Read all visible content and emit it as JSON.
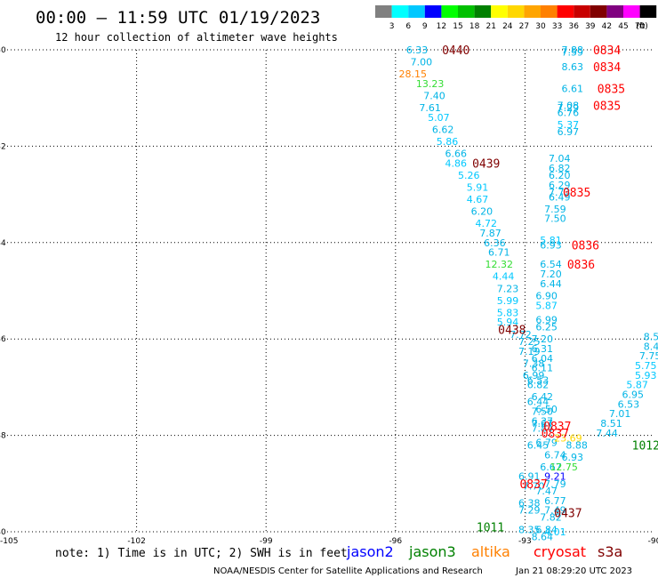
{
  "chart_data": {
    "type": "scatter",
    "title": "00:00 — 11:59 UTC 01/19/2023",
    "subtitle": "12 hour collection of altimeter wave heights",
    "xlim": [
      -105,
      -90
    ],
    "ylim": [
      -40,
      -30
    ],
    "x_ticks": [
      -105,
      -102,
      -99,
      -96,
      -93,
      -90
    ],
    "x_tick_labels": [
      "-105",
      "-102",
      "-99",
      "-96",
      "-93",
      "-90"
    ],
    "y_ticks": [
      -30,
      -32,
      -34,
      -36,
      -38,
      -40
    ],
    "y_tick_labels": [
      "-30",
      "-32",
      "-34",
      "-36",
      "-38",
      "-40"
    ],
    "grid": true,
    "color_scale": {
      "unit": "(ft)",
      "labels": [
        "3",
        "6",
        "9",
        "12",
        "15",
        "18",
        "21",
        "24",
        "27",
        "30",
        "33",
        "36",
        "39",
        "42",
        "45",
        "70"
      ],
      "colors": [
        "#808080",
        "#00ffff",
        "#00c8ff",
        "#0000ff",
        "#00ff00",
        "#00c000",
        "#008000",
        "#ffff00",
        "#ffd700",
        "#ffa500",
        "#ff8000",
        "#ff0000",
        "#c80000",
        "#800000",
        "#800080",
        "#ff00ff",
        "#000000"
      ]
    },
    "series": [
      {
        "name": "jason2",
        "color": "#0000ff",
        "values": []
      },
      {
        "name": "jason3",
        "color": "#008000",
        "values": [
          {
            "x": -90.2,
            "y": -38.2,
            "label": "1012",
            "kind": "time"
          },
          {
            "x": -93.8,
            "y": -39.9,
            "label": "1011",
            "kind": "time"
          }
        ]
      },
      {
        "name": "altika",
        "color": "#ff8000",
        "values": []
      },
      {
        "name": "cryosat",
        "color": "#ff0000",
        "values": [
          {
            "x": -91.1,
            "y": -30.0,
            "label": "0834",
            "kind": "time"
          },
          {
            "x": -91.1,
            "y": -30.35,
            "label": "0834",
            "kind": "time"
          },
          {
            "x": -91.0,
            "y": -30.8,
            "label": "0835",
            "kind": "time"
          },
          {
            "x": -91.1,
            "y": -31.15,
            "label": "0835",
            "kind": "time"
          },
          {
            "x": -91.8,
            "y": -32.95,
            "label": "0835",
            "kind": "time"
          },
          {
            "x": -91.6,
            "y": -34.05,
            "label": "0836",
            "kind": "time"
          },
          {
            "x": -91.7,
            "y": -34.45,
            "label": "0836",
            "kind": "time"
          },
          {
            "x": -92.25,
            "y": -37.8,
            "label": "0837",
            "kind": "time"
          },
          {
            "x": -92.3,
            "y": -37.95,
            "label": "0837",
            "kind": "time"
          },
          {
            "x": -92.8,
            "y": -39.0,
            "label": "0837",
            "kind": "time"
          }
        ]
      },
      {
        "name": "s3a",
        "color": "#800000",
        "values": [
          {
            "x": -94.6,
            "y": -30.0,
            "label": "0440",
            "kind": "time"
          },
          {
            "x": -93.9,
            "y": -32.35,
            "label": "0439",
            "kind": "time"
          },
          {
            "x": -93.3,
            "y": -35.8,
            "label": "0438",
            "kind": "time"
          },
          {
            "x": -92.0,
            "y": -39.6,
            "label": "0437",
            "kind": "time"
          }
        ]
      }
    ],
    "points": [
      {
        "x": -95.5,
        "y": -30.0,
        "v": "6.33"
      },
      {
        "x": -95.4,
        "y": -30.25,
        "v": "7.00"
      },
      {
        "x": -95.6,
        "y": -30.5,
        "v": "28.15"
      },
      {
        "x": -95.2,
        "y": -30.7,
        "v": "13.23"
      },
      {
        "x": -95.1,
        "y": -30.95,
        "v": "7.40"
      },
      {
        "x": -95.2,
        "y": -31.2,
        "v": "7.61"
      },
      {
        "x": -95.0,
        "y": -31.4,
        "v": "5.07"
      },
      {
        "x": -94.9,
        "y": -31.65,
        "v": "6.62"
      },
      {
        "x": -94.8,
        "y": -31.9,
        "v": "5.86"
      },
      {
        "x": -94.6,
        "y": -32.15,
        "v": "6.66"
      },
      {
        "x": -94.6,
        "y": -32.35,
        "v": "4.86"
      },
      {
        "x": -94.3,
        "y": -32.6,
        "v": "5.26"
      },
      {
        "x": -94.1,
        "y": -32.85,
        "v": "5.91"
      },
      {
        "x": -94.1,
        "y": -33.1,
        "v": "4.67"
      },
      {
        "x": -94.0,
        "y": -33.35,
        "v": "6.20"
      },
      {
        "x": -93.9,
        "y": -33.6,
        "v": "4.72"
      },
      {
        "x": -93.8,
        "y": -33.8,
        "v": "7.87"
      },
      {
        "x": -93.7,
        "y": -34.0,
        "v": "6.36"
      },
      {
        "x": -93.6,
        "y": -34.2,
        "v": "6.71"
      },
      {
        "x": -93.6,
        "y": -34.45,
        "v": "12.32"
      },
      {
        "x": -93.5,
        "y": -34.7,
        "v": "4.44"
      },
      {
        "x": -93.4,
        "y": -34.95,
        "v": "7.23"
      },
      {
        "x": -93.4,
        "y": -35.2,
        "v": "5.99"
      },
      {
        "x": -93.4,
        "y": -35.45,
        "v": "5.83"
      },
      {
        "x": -93.4,
        "y": -35.65,
        "v": "5.94"
      },
      {
        "x": -93.1,
        "y": -35.9,
        "v": "7.72"
      },
      {
        "x": -92.9,
        "y": -36.05,
        "v": "7.25"
      },
      {
        "x": -92.9,
        "y": -36.25,
        "v": "7.19"
      },
      {
        "x": -92.8,
        "y": -36.5,
        "v": "7.38"
      },
      {
        "x": -92.8,
        "y": -36.75,
        "v": "6.99"
      },
      {
        "x": -92.7,
        "y": -36.95,
        "v": "6.82"
      },
      {
        "x": -92.6,
        "y": -37.2,
        "v": "6.42"
      },
      {
        "x": -92.5,
        "y": -37.45,
        "v": "6.50"
      },
      {
        "x": -92.6,
        "y": -37.7,
        "v": "6.37"
      },
      {
        "x": -92.6,
        "y": -37.85,
        "v": "7.84"
      },
      {
        "x": -92.5,
        "y": -38.15,
        "v": "6.79"
      },
      {
        "x": -92.7,
        "y": -38.2,
        "v": "6.45"
      },
      {
        "x": -92.3,
        "y": -38.4,
        "v": "6.74"
      },
      {
        "x": -92.4,
        "y": -38.65,
        "v": "6.67"
      },
      {
        "x": -92.9,
        "y": -38.85,
        "v": "6.91"
      },
      {
        "x": -92.8,
        "y": -39.05,
        "v": "7.70"
      },
      {
        "x": -92.5,
        "y": -39.15,
        "v": "7.47"
      },
      {
        "x": -92.3,
        "y": -39.35,
        "v": "6.77"
      },
      {
        "x": -92.9,
        "y": -39.4,
        "v": "6.38"
      },
      {
        "x": -92.9,
        "y": -39.55,
        "v": "7.29"
      },
      {
        "x": -92.3,
        "y": -39.55,
        "v": "7.49"
      },
      {
        "x": -92.4,
        "y": -39.7,
        "v": "7.82"
      },
      {
        "x": -92.9,
        "y": -39.95,
        "v": "8.35"
      },
      {
        "x": -92.5,
        "y": -39.95,
        "v": "6.84"
      },
      {
        "x": -92.3,
        "y": -40.0,
        "v": "4.01"
      },
      {
        "x": -92.6,
        "y": -40.1,
        "v": "8.64"
      },
      {
        "x": -91.9,
        "y": -30.0,
        "v": "7.88"
      },
      {
        "x": -91.9,
        "y": -30.05,
        "v": "7.59"
      },
      {
        "x": -91.9,
        "y": -30.35,
        "v": "8.63"
      },
      {
        "x": -91.9,
        "y": -30.8,
        "v": "6.61"
      },
      {
        "x": -92.0,
        "y": -31.15,
        "v": "7.08"
      },
      {
        "x": -92.0,
        "y": -31.2,
        "v": "7.29"
      },
      {
        "x": -92.0,
        "y": -31.3,
        "v": "6.76"
      },
      {
        "x": -92.0,
        "y": -31.55,
        "v": "5.37"
      },
      {
        "x": -92.0,
        "y": -31.7,
        "v": "6.97"
      },
      {
        "x": -92.2,
        "y": -32.25,
        "v": "7.04"
      },
      {
        "x": -92.2,
        "y": -32.45,
        "v": "6.82"
      },
      {
        "x": -92.2,
        "y": -32.6,
        "v": "6.20"
      },
      {
        "x": -92.2,
        "y": -32.8,
        "v": "6.29"
      },
      {
        "x": -92.2,
        "y": -32.95,
        "v": "7.73"
      },
      {
        "x": -92.2,
        "y": -33.05,
        "v": "6.49"
      },
      {
        "x": -92.3,
        "y": -33.3,
        "v": "7.59"
      },
      {
        "x": -92.3,
        "y": -33.5,
        "v": "7.50"
      },
      {
        "x": -92.4,
        "y": -33.95,
        "v": "5.81"
      },
      {
        "x": -92.4,
        "y": -34.05,
        "v": "6.93"
      },
      {
        "x": -92.4,
        "y": -34.45,
        "v": "6.54"
      },
      {
        "x": -92.4,
        "y": -34.65,
        "v": "7.20"
      },
      {
        "x": -92.4,
        "y": -34.85,
        "v": "6.44"
      },
      {
        "x": -92.5,
        "y": -35.1,
        "v": "6.90"
      },
      {
        "x": -92.5,
        "y": -35.3,
        "v": "5.87"
      },
      {
        "x": -92.5,
        "y": -35.6,
        "v": "6.99"
      },
      {
        "x": -92.5,
        "y": -35.75,
        "v": "6.25"
      },
      {
        "x": -92.6,
        "y": -36.0,
        "v": "7.20"
      },
      {
        "x": -92.6,
        "y": -36.2,
        "v": "6.31"
      },
      {
        "x": -92.6,
        "y": -36.4,
        "v": "6.04"
      },
      {
        "x": -92.6,
        "y": -36.6,
        "v": "6.11"
      },
      {
        "x": -92.7,
        "y": -36.85,
        "v": "6.53"
      },
      {
        "x": -92.7,
        "y": -37.3,
        "v": "6.44"
      },
      {
        "x": -92.6,
        "y": -37.5,
        "v": "7.50"
      },
      {
        "x": -92.6,
        "y": -37.75,
        "v": "7.67"
      },
      {
        "x": -92.0,
        "y": -38.05,
        "v": "23.69"
      },
      {
        "x": -91.8,
        "y": -38.2,
        "v": "8.88"
      },
      {
        "x": -91.9,
        "y": -38.45,
        "v": "6.93"
      },
      {
        "x": -92.1,
        "y": -38.65,
        "v": "12.75"
      },
      {
        "x": -92.3,
        "y": -38.85,
        "v": "9.21"
      },
      {
        "x": -92.3,
        "y": -39.0,
        "v": "7.79"
      },
      {
        "x": -90.0,
        "y": -35.95,
        "v": "8.50"
      },
      {
        "x": -90.0,
        "y": -36.15,
        "v": "8.40"
      },
      {
        "x": -90.1,
        "y": -36.35,
        "v": "7.75"
      },
      {
        "x": -90.2,
        "y": -36.55,
        "v": "5.75"
      },
      {
        "x": -90.2,
        "y": -36.75,
        "v": "5.93"
      },
      {
        "x": -90.4,
        "y": -36.95,
        "v": "5.87"
      },
      {
        "x": -90.5,
        "y": -37.15,
        "v": "6.95"
      },
      {
        "x": -90.6,
        "y": -37.35,
        "v": "6.53"
      },
      {
        "x": -90.8,
        "y": -37.55,
        "v": "7.01"
      },
      {
        "x": -91.0,
        "y": -37.75,
        "v": "8.51"
      },
      {
        "x": -91.1,
        "y": -37.95,
        "v": "7.44"
      }
    ],
    "legend": [
      "jason2",
      "jason3",
      "altika",
      "cryosat",
      "s3a"
    ],
    "note": "note: 1) Time is in UTC; 2) SWH is in feet",
    "footer_left": "NOAA/NESDIS Center for Satellite Applications and Research",
    "footer_right": "Jan 21 08:29:20 UTC 2023"
  }
}
